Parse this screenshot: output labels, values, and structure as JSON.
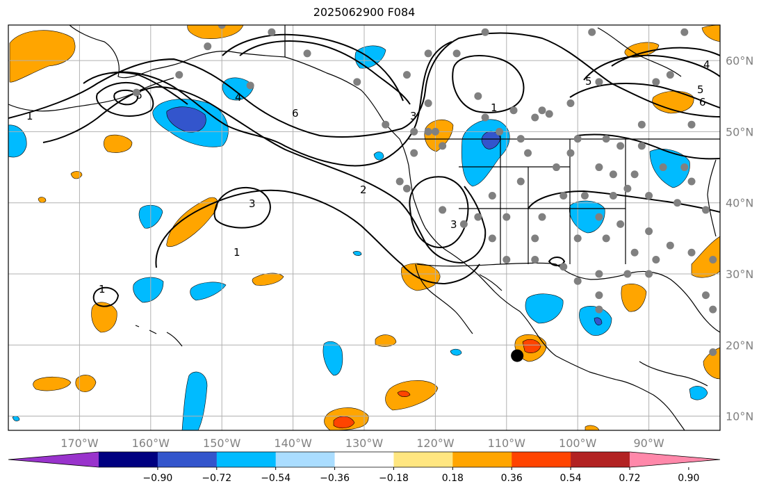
{
  "title": "2025062900 F084",
  "map": {
    "projection": "PlateCarree",
    "lon_range": [
      -180,
      -80
    ],
    "lat_range": [
      8,
      65
    ],
    "gridlines": true,
    "lon_ticks": [
      {
        "value": -170,
        "label": "170°W"
      },
      {
        "value": -160,
        "label": "160°W"
      },
      {
        "value": -150,
        "label": "150°W"
      },
      {
        "value": -140,
        "label": "140°W"
      },
      {
        "value": -130,
        "label": "130°W"
      },
      {
        "value": -120,
        "label": "120°W"
      },
      {
        "value": -110,
        "label": "110°W"
      },
      {
        "value": -100,
        "label": "100°W"
      },
      {
        "value": -90,
        "label": "90°W"
      }
    ],
    "lat_ticks": [
      {
        "value": 60,
        "label": "60°N"
      },
      {
        "value": 50,
        "label": "50°N"
      },
      {
        "value": 40,
        "label": "40°N"
      },
      {
        "value": 30,
        "label": "30°N"
      },
      {
        "value": 20,
        "label": "20°N"
      },
      {
        "value": 10,
        "label": "10°N"
      }
    ],
    "marker": {
      "lon": -108.5,
      "lat": 18.5,
      "color": "#000000"
    },
    "station_color": "#808080",
    "station_dots": [
      [
        -152,
        62
      ],
      [
        -150,
        65
      ],
      [
        -143,
        64
      ],
      [
        -138,
        61
      ],
      [
        -131,
        57
      ],
      [
        -124,
        58
      ],
      [
        -121,
        61
      ],
      [
        -117,
        61
      ],
      [
        -113,
        64
      ],
      [
        -98,
        64
      ],
      [
        -85,
        64
      ],
      [
        -162,
        55.5
      ],
      [
        -156,
        58
      ],
      [
        -146,
        56.5
      ],
      [
        -121,
        54
      ],
      [
        -114,
        55
      ],
      [
        -113,
        52
      ],
      [
        -109,
        53
      ],
      [
        -106,
        52
      ],
      [
        -105,
        53
      ],
      [
        -104,
        52.5
      ],
      [
        -101,
        54
      ],
      [
        -97,
        57
      ],
      [
        -91,
        51
      ],
      [
        -84,
        51
      ],
      [
        -87,
        58
      ],
      [
        -89,
        57
      ],
      [
        -108,
        49
      ],
      [
        -100,
        49
      ],
      [
        -96,
        49
      ],
      [
        -94,
        48
      ],
      [
        -91,
        48
      ],
      [
        -107,
        47
      ],
      [
        -101,
        47
      ],
      [
        -103,
        45
      ],
      [
        -97,
        45
      ],
      [
        -95,
        44
      ],
      [
        -92,
        44
      ],
      [
        -88,
        45
      ],
      [
        -85,
        45
      ],
      [
        -84,
        43
      ],
      [
        -112,
        41
      ],
      [
        -108,
        43
      ],
      [
        -102,
        41
      ],
      [
        -99,
        41
      ],
      [
        -95,
        41
      ],
      [
        -93,
        42
      ],
      [
        -90,
        41
      ],
      [
        -86,
        40
      ],
      [
        -82,
        39
      ],
      [
        -124,
        42
      ],
      [
        -119,
        39
      ],
      [
        -114,
        38
      ],
      [
        -110,
        38
      ],
      [
        -105,
        38
      ],
      [
        -97,
        38
      ],
      [
        -94,
        37
      ],
      [
        -90,
        36
      ],
      [
        -87,
        34
      ],
      [
        -84,
        33
      ],
      [
        -81,
        32
      ],
      [
        -123,
        47
      ],
      [
        -121,
        50
      ],
      [
        -119,
        48
      ],
      [
        -112,
        35
      ],
      [
        -106,
        35
      ],
      [
        -100,
        35
      ],
      [
        -96,
        35
      ],
      [
        -92,
        33
      ],
      [
        -89,
        32
      ],
      [
        -110,
        32
      ],
      [
        -106,
        32
      ],
      [
        -102,
        31
      ],
      [
        -97,
        30
      ],
      [
        -93,
        30
      ],
      [
        -90,
        30
      ],
      [
        -100,
        29
      ],
      [
        -97,
        27
      ],
      [
        -97,
        25
      ],
      [
        -82,
        27
      ],
      [
        -81,
        25
      ],
      [
        -81,
        19
      ],
      [
        -123,
        50
      ],
      [
        -125,
        43
      ],
      [
        -127,
        51
      ],
      [
        -111,
        50
      ],
      [
        -116,
        37
      ],
      [
        -120,
        50
      ]
    ],
    "contours": [
      {
        "value": 1,
        "label": "1"
      },
      {
        "value": 2,
        "label": "2"
      },
      {
        "value": 3,
        "label": "3"
      },
      {
        "value": 4,
        "label": "4"
      },
      {
        "value": 5,
        "label": "5"
      },
      {
        "value": 6,
        "label": "6"
      }
    ]
  },
  "colorbar": {
    "colors": [
      "#9933cc",
      "#000080",
      "#3355cc",
      "#00bbff",
      "#aaddff",
      "#ffffff",
      "#ffe680",
      "#ffa500",
      "#ff4400",
      "#b22222",
      "#ff88aa"
    ],
    "tick_labels": [
      "−0.90",
      "−0.72",
      "−0.54",
      "−0.36",
      "−0.18",
      "0.18",
      "0.36",
      "0.54",
      "0.72",
      "0.90"
    ]
  },
  "legend_colors": {
    "land_line": "#000000",
    "grid": "#b0b0b0"
  }
}
